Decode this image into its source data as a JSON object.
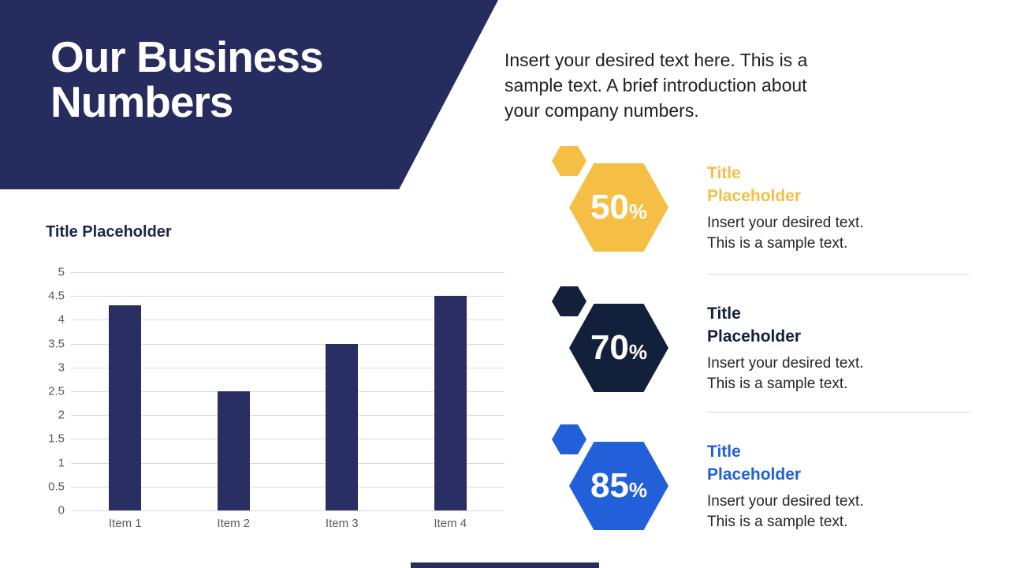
{
  "slide": {
    "header": {
      "title_lines": [
        "Our Business",
        "Numbers"
      ]
    },
    "intro_lines": [
      "Insert your desired text here. This is a",
      "sample text. A brief introduction about",
      "your company numbers."
    ]
  },
  "chart_data": {
    "type": "bar",
    "title": "Title Placeholder",
    "categories": [
      "Item 1",
      "Item 2",
      "Item 3",
      "Item 4"
    ],
    "values": [
      4.3,
      2.5,
      3.5,
      4.5
    ],
    "ylim": [
      0,
      5
    ],
    "yticks": [
      5,
      4.5,
      4,
      3.5,
      3,
      2.5,
      2,
      1.5,
      1,
      0.5,
      0
    ],
    "grid": true,
    "legend": false,
    "xlabel": "",
    "ylabel": "",
    "bar_color": "#292e63",
    "gridline_color": "#d9d9d9",
    "tick_color": "#595959"
  },
  "stats": [
    {
      "value": "50",
      "suffix": "%",
      "color": "#f5bf45",
      "title_lines": [
        "Title",
        "Placeholder"
      ],
      "desc_lines": [
        "Insert your desired text.",
        "This is a sample text."
      ]
    },
    {
      "value": "70",
      "suffix": "%",
      "color": "#13203c",
      "title_lines": [
        "Title",
        "Placeholder"
      ],
      "desc_lines": [
        "Insert your desired text.",
        "This is a sample text."
      ]
    },
    {
      "value": "85",
      "suffix": "%",
      "color": "#2160d8",
      "title_lines": [
        "Title",
        "Placeholder"
      ],
      "desc_lines": [
        "Insert your desired text.",
        "This is a sample text."
      ]
    }
  ],
  "colors": {
    "header_bg": "#272c5e",
    "chart_heading": "#1c2545",
    "intro_text": "#1f1f1f",
    "desc_text": "#262626",
    "divider": "#d7dddd",
    "footer_bar": "#272c5e"
  }
}
